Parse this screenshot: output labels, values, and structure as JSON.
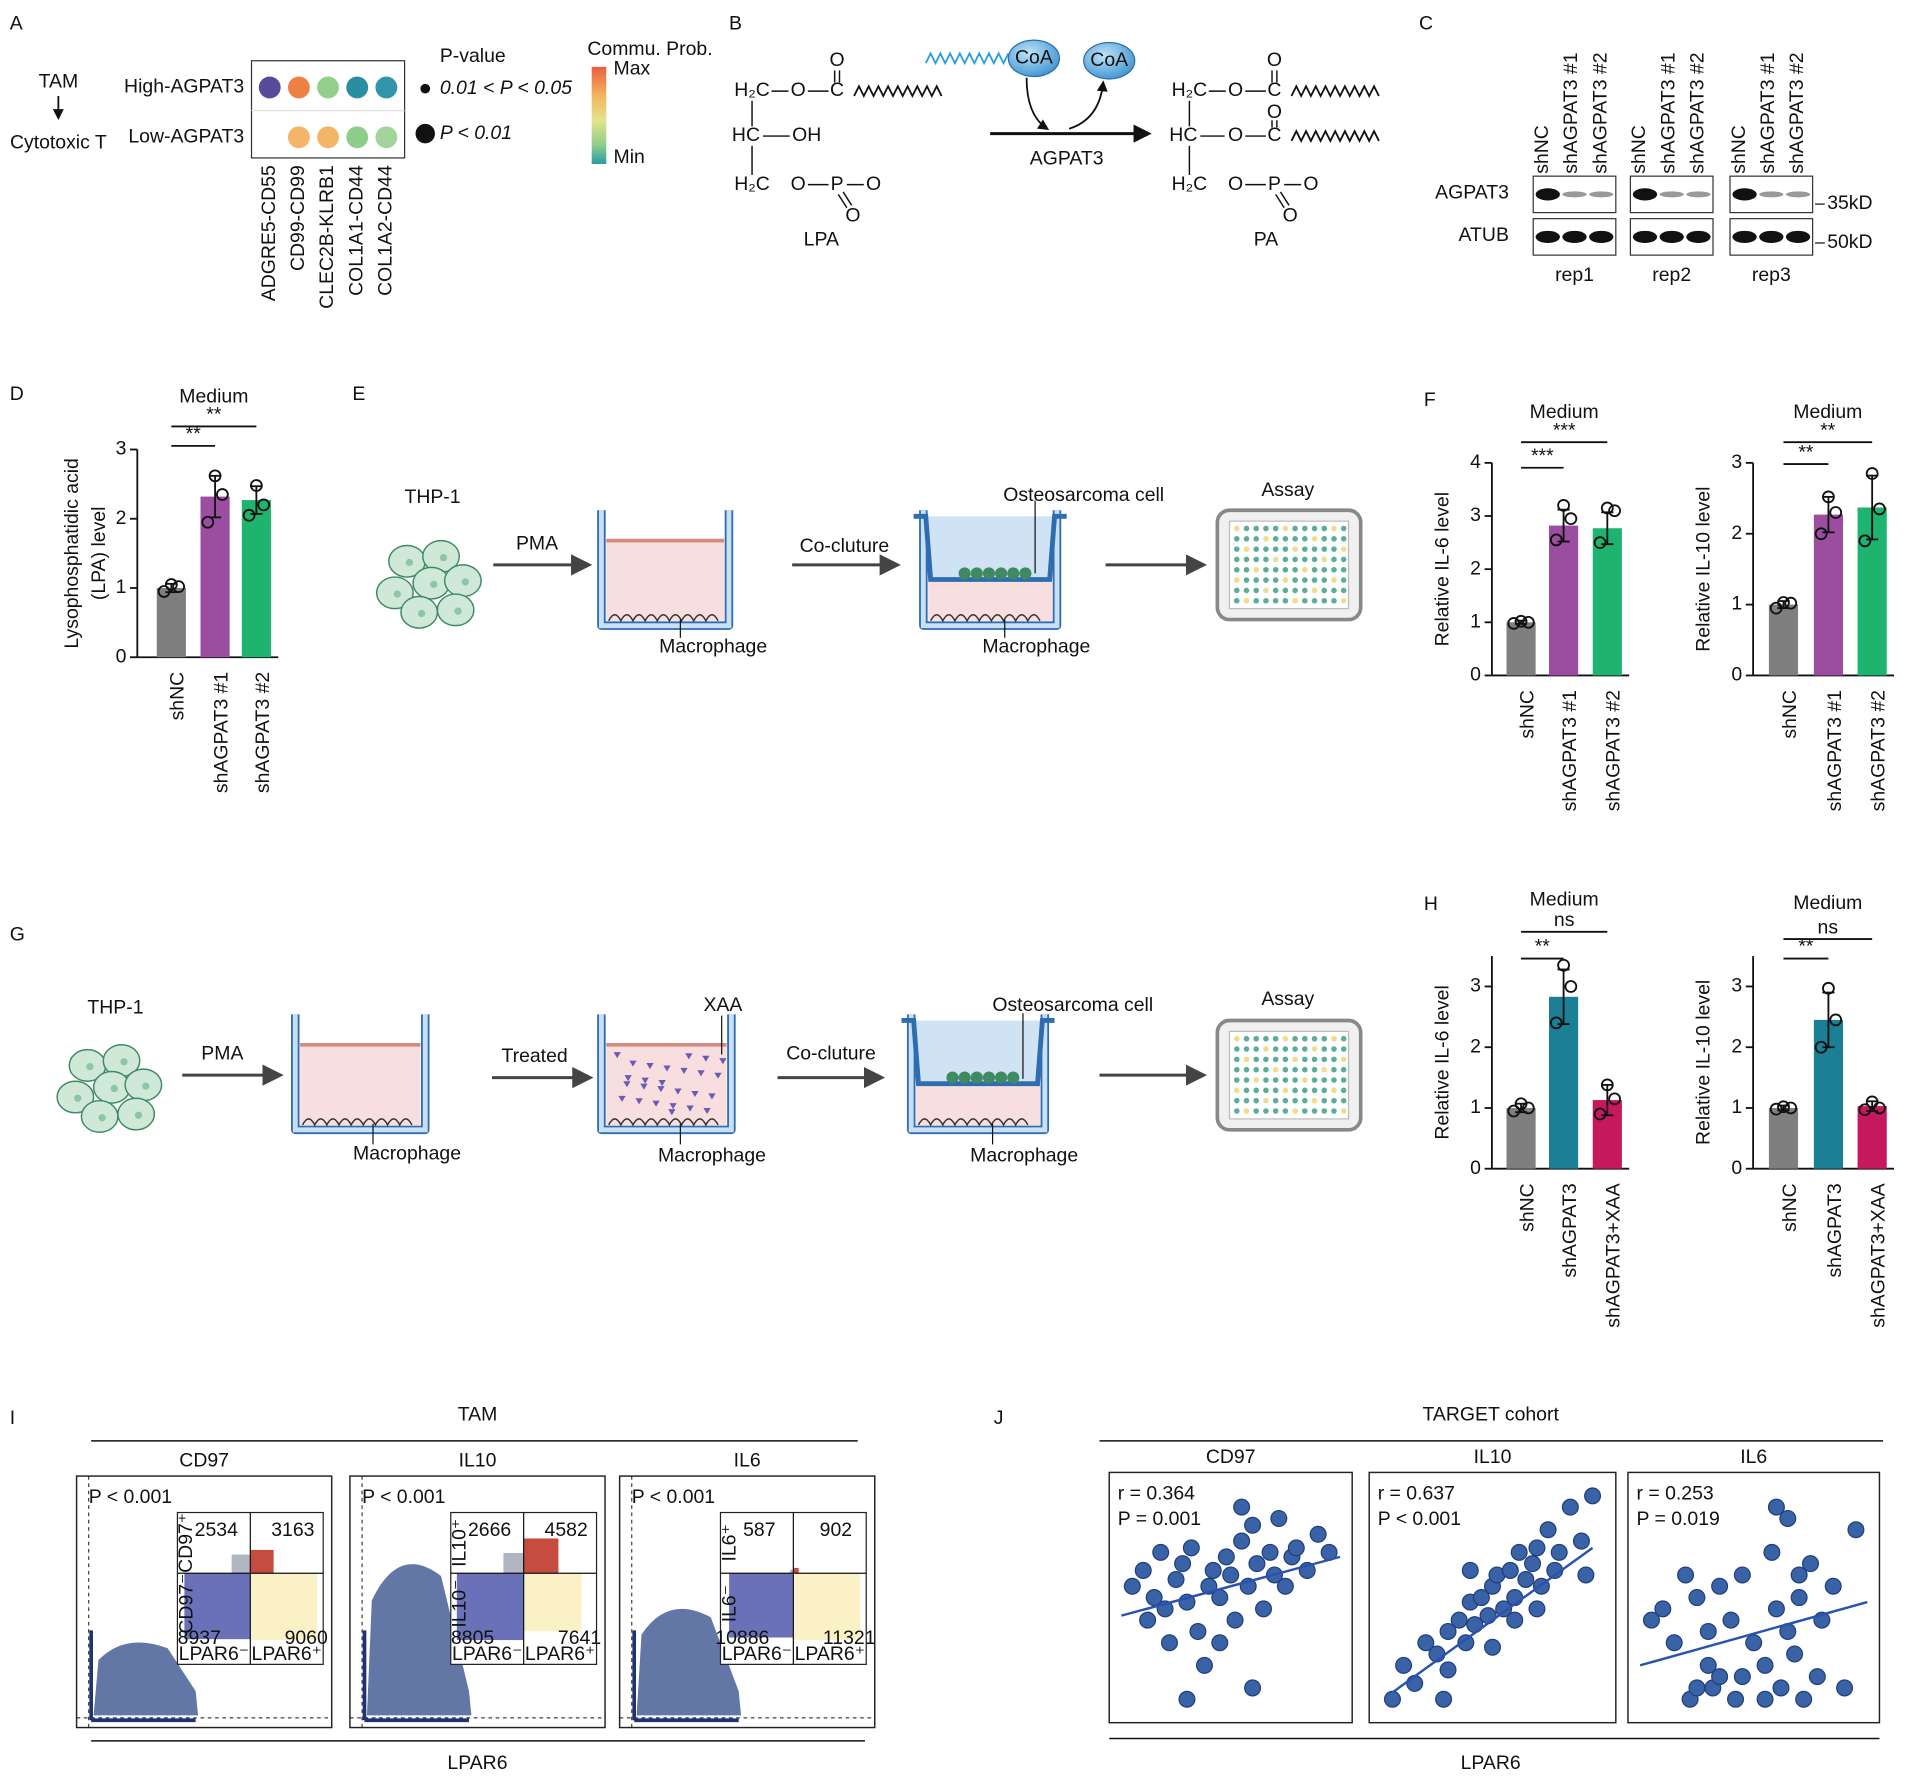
{
  "panel_labels": [
    "A",
    "B",
    "C",
    "D",
    "E",
    "F",
    "G",
    "H",
    "I",
    "J"
  ],
  "panel_a": {
    "source": "TAM",
    "target": "Cytotoxic T",
    "rows": [
      "High-AGPAT3",
      "Low-AGPAT3"
    ],
    "columns": [
      "ADGRE5-CD55",
      "CD99-CD99",
      "CLEC2B-KLRB1",
      "COL1A1-CD44",
      "COL1A2-CD44"
    ],
    "dot_colors": [
      [
        "#5a4a9c",
        "#ee8043",
        "#93cf8c",
        "#2a8ea3",
        "#3194a8"
      ],
      [
        null,
        "#f5b568",
        "#f5b568",
        "#8fce8a",
        "#a2d49b"
      ]
    ],
    "size_title": "P-value",
    "size_labels": [
      "0.01 < P < 0.05",
      "P < 0.01"
    ],
    "color_title": "Commu. Prob.",
    "color_max": "Max",
    "color_min": "Min"
  },
  "panel_b": {
    "lpa_atoms": [
      "H₂C",
      "O",
      "C",
      "O",
      "HC",
      "OH",
      "H₂C",
      "O",
      "P",
      "O",
      "O"
    ],
    "pa_atoms": [
      "H₂C",
      "O",
      "C",
      "O",
      "HC",
      "O",
      "C",
      "O",
      "H₂C",
      "O",
      "P",
      "O",
      "O"
    ],
    "lpa": "LPA",
    "pa": "PA",
    "coa": "CoA",
    "enzyme": "AGPAT3"
  },
  "panel_c": {
    "lanes": [
      "shNC",
      "shAGPAT3 #1",
      "shAGPAT3 #2"
    ],
    "rows": [
      "AGPAT3",
      "ATUB"
    ],
    "markers": [
      "35kD",
      "50kD"
    ],
    "replicates": [
      "rep1",
      "rep2",
      "rep3"
    ]
  },
  "panel_e": {
    "cell": "THP-1",
    "steps": [
      "PMA",
      "Co-cluture"
    ],
    "tumor": "Osteosarcoma cell",
    "macrophage": "Macrophage",
    "assay": "Assay"
  },
  "panel_g": {
    "cell": "THP-1",
    "steps": [
      "PMA",
      "Treated",
      "Co-cluture"
    ],
    "drug": "XAA",
    "tumor": "Osteosarcoma cell",
    "macrophage": "Macrophage",
    "assay": "Assay"
  },
  "panel_i": {
    "title": "TAM",
    "xlabel": "LPAR6",
    "x_neg": "LPAR6⁻",
    "x_pos": "LPAR6⁺",
    "plots": [
      {
        "name": "CD97",
        "p": "P < 0.001",
        "y_pos": "CD97⁺",
        "y_neg": "CD97⁻",
        "counts": [
          2534,
          3163,
          8937,
          9060
        ]
      },
      {
        "name": "IL10",
        "p": "P < 0.001",
        "y_pos": "IL10⁺",
        "y_neg": "IL10⁻",
        "counts": [
          2666,
          4582,
          8805,
          7641
        ]
      },
      {
        "name": "IL6",
        "p": "P < 0.001",
        "y_pos": "IL6⁺",
        "y_neg": "IL6⁻",
        "counts": [
          587,
          902,
          10886,
          11321
        ]
      }
    ]
  },
  "panel_j": {
    "title": "TARGET cohort",
    "xlabel": "LPAR6"
  },
  "chart_data": [
    {
      "type": "bar",
      "title": "Medium",
      "ylabel": [
        "Lysophosphatidic acid",
        "(LPA) level"
      ],
      "categories": [
        "shNC",
        "shAGPAT3 #1",
        "shAGPAT3 #2"
      ],
      "values": [
        1.0,
        2.32,
        2.27
      ],
      "errors": [
        0.06,
        0.3,
        0.2
      ],
      "points": [
        [
          0.95,
          1.02,
          1.05
        ],
        [
          1.95,
          2.35,
          2.62
        ],
        [
          2.05,
          2.2,
          2.48
        ]
      ],
      "colors": [
        "#7f7f7f",
        "#9b4e9f",
        "#1eb36e"
      ],
      "significance": [
        null,
        "**",
        "**"
      ],
      "ylim": [
        0,
        3
      ],
      "yticks": [
        0,
        1,
        2,
        3
      ]
    },
    {
      "type": "bar",
      "title": "Medium",
      "ylabel": "Relative IL-6 level",
      "categories": [
        "shNC",
        "shAGPAT3 #1",
        "shAGPAT3 #2"
      ],
      "values": [
        1.0,
        2.82,
        2.77
      ],
      "errors": [
        0.03,
        0.3,
        0.3
      ],
      "points": [
        [
          0.98,
          1.0,
          1.02
        ],
        [
          2.55,
          2.95,
          3.2
        ],
        [
          2.5,
          3.1,
          3.15
        ]
      ],
      "colors": [
        "#7f7f7f",
        "#9b4e9f",
        "#1eb36e"
      ],
      "significance": [
        null,
        "***",
        "***"
      ],
      "ylim": [
        0,
        4
      ],
      "yticks": [
        0,
        1,
        2,
        3,
        4
      ]
    },
    {
      "type": "bar",
      "title": "Medium",
      "ylabel": "Relative IL-10 level",
      "categories": [
        "shNC",
        "shAGPAT3 #1",
        "shAGPAT3 #2"
      ],
      "values": [
        1.0,
        2.27,
        2.37
      ],
      "errors": [
        0.05,
        0.25,
        0.45
      ],
      "points": [
        [
          0.95,
          1.02,
          1.03
        ],
        [
          2.0,
          2.3,
          2.52
        ],
        [
          1.9,
          2.35,
          2.85
        ]
      ],
      "colors": [
        "#7f7f7f",
        "#9b4e9f",
        "#1eb36e"
      ],
      "significance": [
        null,
        "**",
        "**"
      ],
      "ylim": [
        0,
        3
      ],
      "yticks": [
        0,
        1,
        2,
        3
      ]
    },
    {
      "type": "bar",
      "title": "Medium",
      "ylabel": "Relative IL-6 level",
      "categories": [
        "shNC",
        "shAGPAT3",
        "shAGPAT3+XAA"
      ],
      "values": [
        1.0,
        2.83,
        1.13
      ],
      "errors": [
        0.07,
        0.45,
        0.25
      ],
      "points": [
        [
          0.95,
          1.0,
          1.07
        ],
        [
          2.4,
          3.0,
          3.35
        ],
        [
          0.9,
          1.15,
          1.38
        ]
      ],
      "colors": [
        "#7f7f7f",
        "#1b7f95",
        "#c5185d"
      ],
      "significance": [
        null,
        "**",
        "ns"
      ],
      "ylim": [
        0,
        3.5
      ],
      "yticks": [
        0,
        1,
        2,
        3
      ]
    },
    {
      "type": "bar",
      "title": "Medium",
      "ylabel": "Relative IL-10 level",
      "categories": [
        "shNC",
        "shAGPAT3",
        "shAGPAT3+XAA"
      ],
      "values": [
        1.0,
        2.45,
        1.03
      ],
      "errors": [
        0.04,
        0.45,
        0.08
      ],
      "points": [
        [
          0.98,
          1.0,
          1.02
        ],
        [
          2.0,
          2.45,
          2.97
        ],
        [
          0.97,
          1.0,
          1.1
        ]
      ],
      "colors": [
        "#7f7f7f",
        "#1b7f95",
        "#c5185d"
      ],
      "significance": [
        null,
        "**",
        "ns"
      ],
      "ylim": [
        0,
        3.5
      ],
      "yticks": [
        0,
        1,
        2,
        3
      ]
    },
    {
      "type": "scatter",
      "title": "CD97",
      "annotations": [
        "r = 0.364",
        "P = 0.001"
      ],
      "color": "#3a62a7",
      "xlim": [
        0,
        1
      ],
      "ylim": [
        0,
        1
      ],
      "x": [
        0.05,
        0.1,
        0.12,
        0.15,
        0.18,
        0.2,
        0.22,
        0.25,
        0.28,
        0.3,
        0.32,
        0.35,
        0.38,
        0.4,
        0.42,
        0.45,
        0.48,
        0.5,
        0.52,
        0.55,
        0.58,
        0.6,
        0.62,
        0.65,
        0.68,
        0.7,
        0.72,
        0.75,
        0.78,
        0.8,
        0.85,
        0.9,
        0.95,
        0.3,
        0.6,
        0.45,
        0.55
      ],
      "y": [
        0.55,
        0.62,
        0.4,
        0.5,
        0.7,
        0.45,
        0.3,
        0.58,
        0.65,
        0.48,
        0.72,
        0.35,
        0.2,
        0.55,
        0.62,
        0.5,
        0.68,
        0.6,
        0.4,
        0.75,
        0.55,
        0.82,
        0.65,
        0.45,
        0.7,
        0.6,
        0.85,
        0.55,
        0.68,
        0.72,
        0.62,
        0.78,
        0.7,
        0.05,
        0.1,
        0.3,
        0.9
      ],
      "fit": {
        "x": [
          0,
          1
        ],
        "y": [
          0.42,
          0.68
        ]
      }
    },
    {
      "type": "scatter",
      "title": "IL10",
      "annotations": [
        "r = 0.637",
        "P < 0.001"
      ],
      "color": "#3a62a7",
      "xlim": [
        0,
        1
      ],
      "ylim": [
        0,
        1
      ],
      "x": [
        0.05,
        0.1,
        0.15,
        0.2,
        0.25,
        0.28,
        0.3,
        0.35,
        0.38,
        0.4,
        0.42,
        0.45,
        0.48,
        0.5,
        0.52,
        0.55,
        0.58,
        0.6,
        0.62,
        0.65,
        0.68,
        0.7,
        0.72,
        0.75,
        0.78,
        0.8,
        0.85,
        0.9,
        0.92,
        0.95,
        0.3,
        0.5,
        0.6,
        0.7,
        0.4
      ],
      "y": [
        0.05,
        0.2,
        0.12,
        0.3,
        0.25,
        0.05,
        0.35,
        0.4,
        0.3,
        0.48,
        0.38,
        0.5,
        0.42,
        0.55,
        0.6,
        0.45,
        0.62,
        0.5,
        0.7,
        0.58,
        0.65,
        0.72,
        0.55,
        0.8,
        0.62,
        0.7,
        0.9,
        0.75,
        0.6,
        0.95,
        0.18,
        0.28,
        0.4,
        0.45,
        0.62
      ],
      "fit": {
        "x": [
          0.05,
          0.95
        ],
        "y": [
          0.08,
          0.72
        ]
      }
    },
    {
      "type": "scatter",
      "title": "IL6",
      "annotations": [
        "r = 0.253",
        "P = 0.019"
      ],
      "color": "#3a62a7",
      "xlim": [
        0,
        1
      ],
      "ylim": [
        0,
        1
      ],
      "x": [
        0.05,
        0.1,
        0.15,
        0.2,
        0.22,
        0.25,
        0.3,
        0.32,
        0.35,
        0.4,
        0.42,
        0.45,
        0.5,
        0.55,
        0.58,
        0.6,
        0.62,
        0.65,
        0.68,
        0.7,
        0.72,
        0.75,
        0.78,
        0.8,
        0.85,
        0.9,
        0.95,
        0.25,
        0.35,
        0.45,
        0.55,
        0.65,
        0.3,
        0.6,
        0.7
      ],
      "y": [
        0.4,
        0.45,
        0.3,
        0.6,
        0.05,
        0.5,
        0.35,
        0.1,
        0.55,
        0.4,
        0.05,
        0.6,
        0.3,
        0.05,
        0.7,
        0.45,
        0.1,
        0.85,
        0.25,
        0.5,
        0.05,
        0.65,
        0.15,
        0.4,
        0.55,
        0.1,
        0.8,
        0.1,
        0.15,
        0.15,
        0.2,
        0.35,
        0.2,
        0.9,
        0.6
      ],
      "fit": {
        "x": [
          0,
          1
        ],
        "y": [
          0.2,
          0.48
        ]
      }
    }
  ]
}
